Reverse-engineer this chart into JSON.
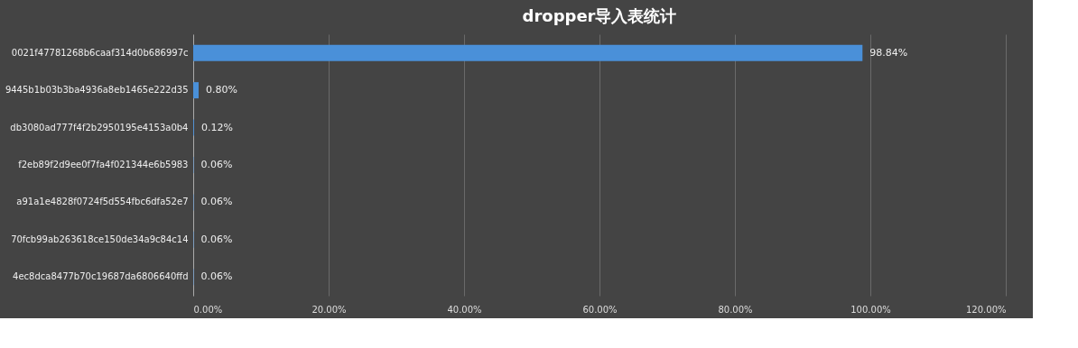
{
  "chart_data": {
    "type": "bar",
    "orientation": "horizontal",
    "title": "dropper导入表统计",
    "categories": [
      "0021f47781268b6caaf314d0b686997c",
      "9445b1b03b3ba4936a8eb1465e222d35",
      "db3080ad777f4f2b2950195e4153a0b4",
      "f2eb89f2d9ee0f7fa4f021344e6b5983",
      "a91a1e4828f0724f5d554fbc6dfa52e7",
      "70fcb99ab263618ce150de34a9c84c14",
      "4ec8dca8477b70c19687da6806640ffd"
    ],
    "values": [
      98.84,
      0.8,
      0.12,
      0.06,
      0.06,
      0.06,
      0.06
    ],
    "value_labels": [
      "98.84%",
      "0.80%",
      "0.12%",
      "0.06%",
      "0.06%",
      "0.06%",
      "0.06%"
    ],
    "color": "#4a90d9",
    "xlim": [
      0,
      120
    ],
    "xticks": [
      {
        "value": 0,
        "label": "0.00%"
      },
      {
        "value": 20,
        "label": "20.00%"
      },
      {
        "value": 40,
        "label": "40.00%"
      },
      {
        "value": 60,
        "label": "60.00%"
      },
      {
        "value": 80,
        "label": "80.00%"
      },
      {
        "value": 100,
        "label": "100.00%"
      },
      {
        "value": 120,
        "label": "120.00%"
      }
    ],
    "grid": "x"
  }
}
